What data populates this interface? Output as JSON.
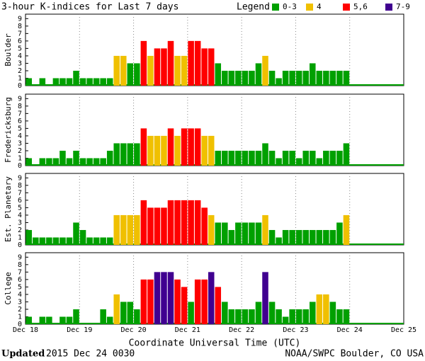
{
  "title": "3-hour K-indices for Last 7 days",
  "legend_title": "Legend:",
  "legend": [
    {
      "label": "0-3",
      "color": "#00a000"
    },
    {
      "label": "4",
      "color": "#f0c000"
    },
    {
      "label": "5,6",
      "color": "#ff0000"
    },
    {
      "label": "7-9",
      "color": "#400090"
    }
  ],
  "xticks": [
    "Dec 18",
    "Dec 19",
    "Dec 20",
    "Dec 21",
    "Dec 22",
    "Dec 23",
    "Dec 24",
    "Dec 25"
  ],
  "x_label": "Coordinate Universal Time (UTC)",
  "updated_label": "Updated",
  "updated": "2015 Dec 24 0030",
  "source": "NOAA/SWPC Boulder, CO USA",
  "chart_data": [
    {
      "type": "bar",
      "ylabel": "Boulder",
      "ylim": [
        0,
        9.6
      ],
      "yticks": [
        0,
        1,
        2,
        3,
        4,
        5,
        6,
        7,
        8,
        9
      ],
      "values": [
        1,
        0,
        1,
        0,
        1,
        1,
        1,
        2,
        1,
        1,
        1,
        1,
        1,
        4,
        4,
        3,
        3,
        6,
        4,
        5,
        5,
        6,
        4,
        4,
        6,
        6,
        5,
        5,
        3,
        2,
        2,
        2,
        2,
        2,
        3,
        4,
        2,
        1,
        2,
        2,
        2,
        2,
        3,
        2,
        2,
        2,
        2,
        2,
        null,
        null,
        null,
        null,
        null,
        null,
        null,
        null
      ]
    },
    {
      "type": "bar",
      "ylabel": "Fredericksburg",
      "ylim": [
        0,
        9.6
      ],
      "yticks": [
        0,
        1,
        2,
        3,
        4,
        5,
        6,
        7,
        8,
        9
      ],
      "values": [
        1,
        0,
        1,
        1,
        1,
        2,
        1,
        2,
        1,
        1,
        1,
        1,
        2,
        3,
        3,
        3,
        3,
        5,
        4,
        4,
        4,
        5,
        4,
        5,
        5,
        5,
        4,
        4,
        2,
        2,
        2,
        2,
        2,
        2,
        2,
        3,
        2,
        1,
        2,
        2,
        1,
        2,
        2,
        1,
        2,
        2,
        2,
        3,
        null,
        null,
        null,
        null,
        null,
        null,
        null,
        null
      ]
    },
    {
      "type": "bar",
      "ylabel": "Est. Planetary",
      "ylim": [
        0,
        9.6
      ],
      "yticks": [
        0,
        1,
        2,
        3,
        4,
        5,
        6,
        7,
        8,
        9
      ],
      "values": [
        2,
        1,
        1,
        1,
        1,
        1,
        1,
        3,
        2,
        1,
        1,
        1,
        1,
        4,
        4,
        4,
        4,
        6,
        5,
        5,
        5,
        6,
        6,
        6,
        6,
        6,
        5,
        4,
        3,
        3,
        2,
        3,
        3,
        3,
        3,
        4,
        2,
        1,
        2,
        2,
        2,
        2,
        2,
        2,
        2,
        2,
        3,
        4,
        null,
        null,
        null,
        null,
        null,
        null,
        null,
        null
      ]
    },
    {
      "type": "bar",
      "ylabel": "College",
      "ylim": [
        0,
        9.6
      ],
      "yticks": [
        0,
        1,
        2,
        3,
        4,
        5,
        6,
        7,
        8,
        9
      ],
      "values": [
        1,
        0,
        1,
        1,
        0,
        1,
        1,
        2,
        0,
        0,
        0,
        2,
        1,
        4,
        3,
        3,
        2,
        6,
        6,
        7,
        7,
        7,
        6,
        5,
        3,
        6,
        6,
        7,
        5,
        3,
        2,
        2,
        2,
        2,
        3,
        7,
        3,
        2,
        1,
        2,
        2,
        2,
        3,
        4,
        4,
        3,
        2,
        2,
        null,
        null,
        null,
        null,
        null,
        null,
        null,
        null
      ]
    }
  ]
}
